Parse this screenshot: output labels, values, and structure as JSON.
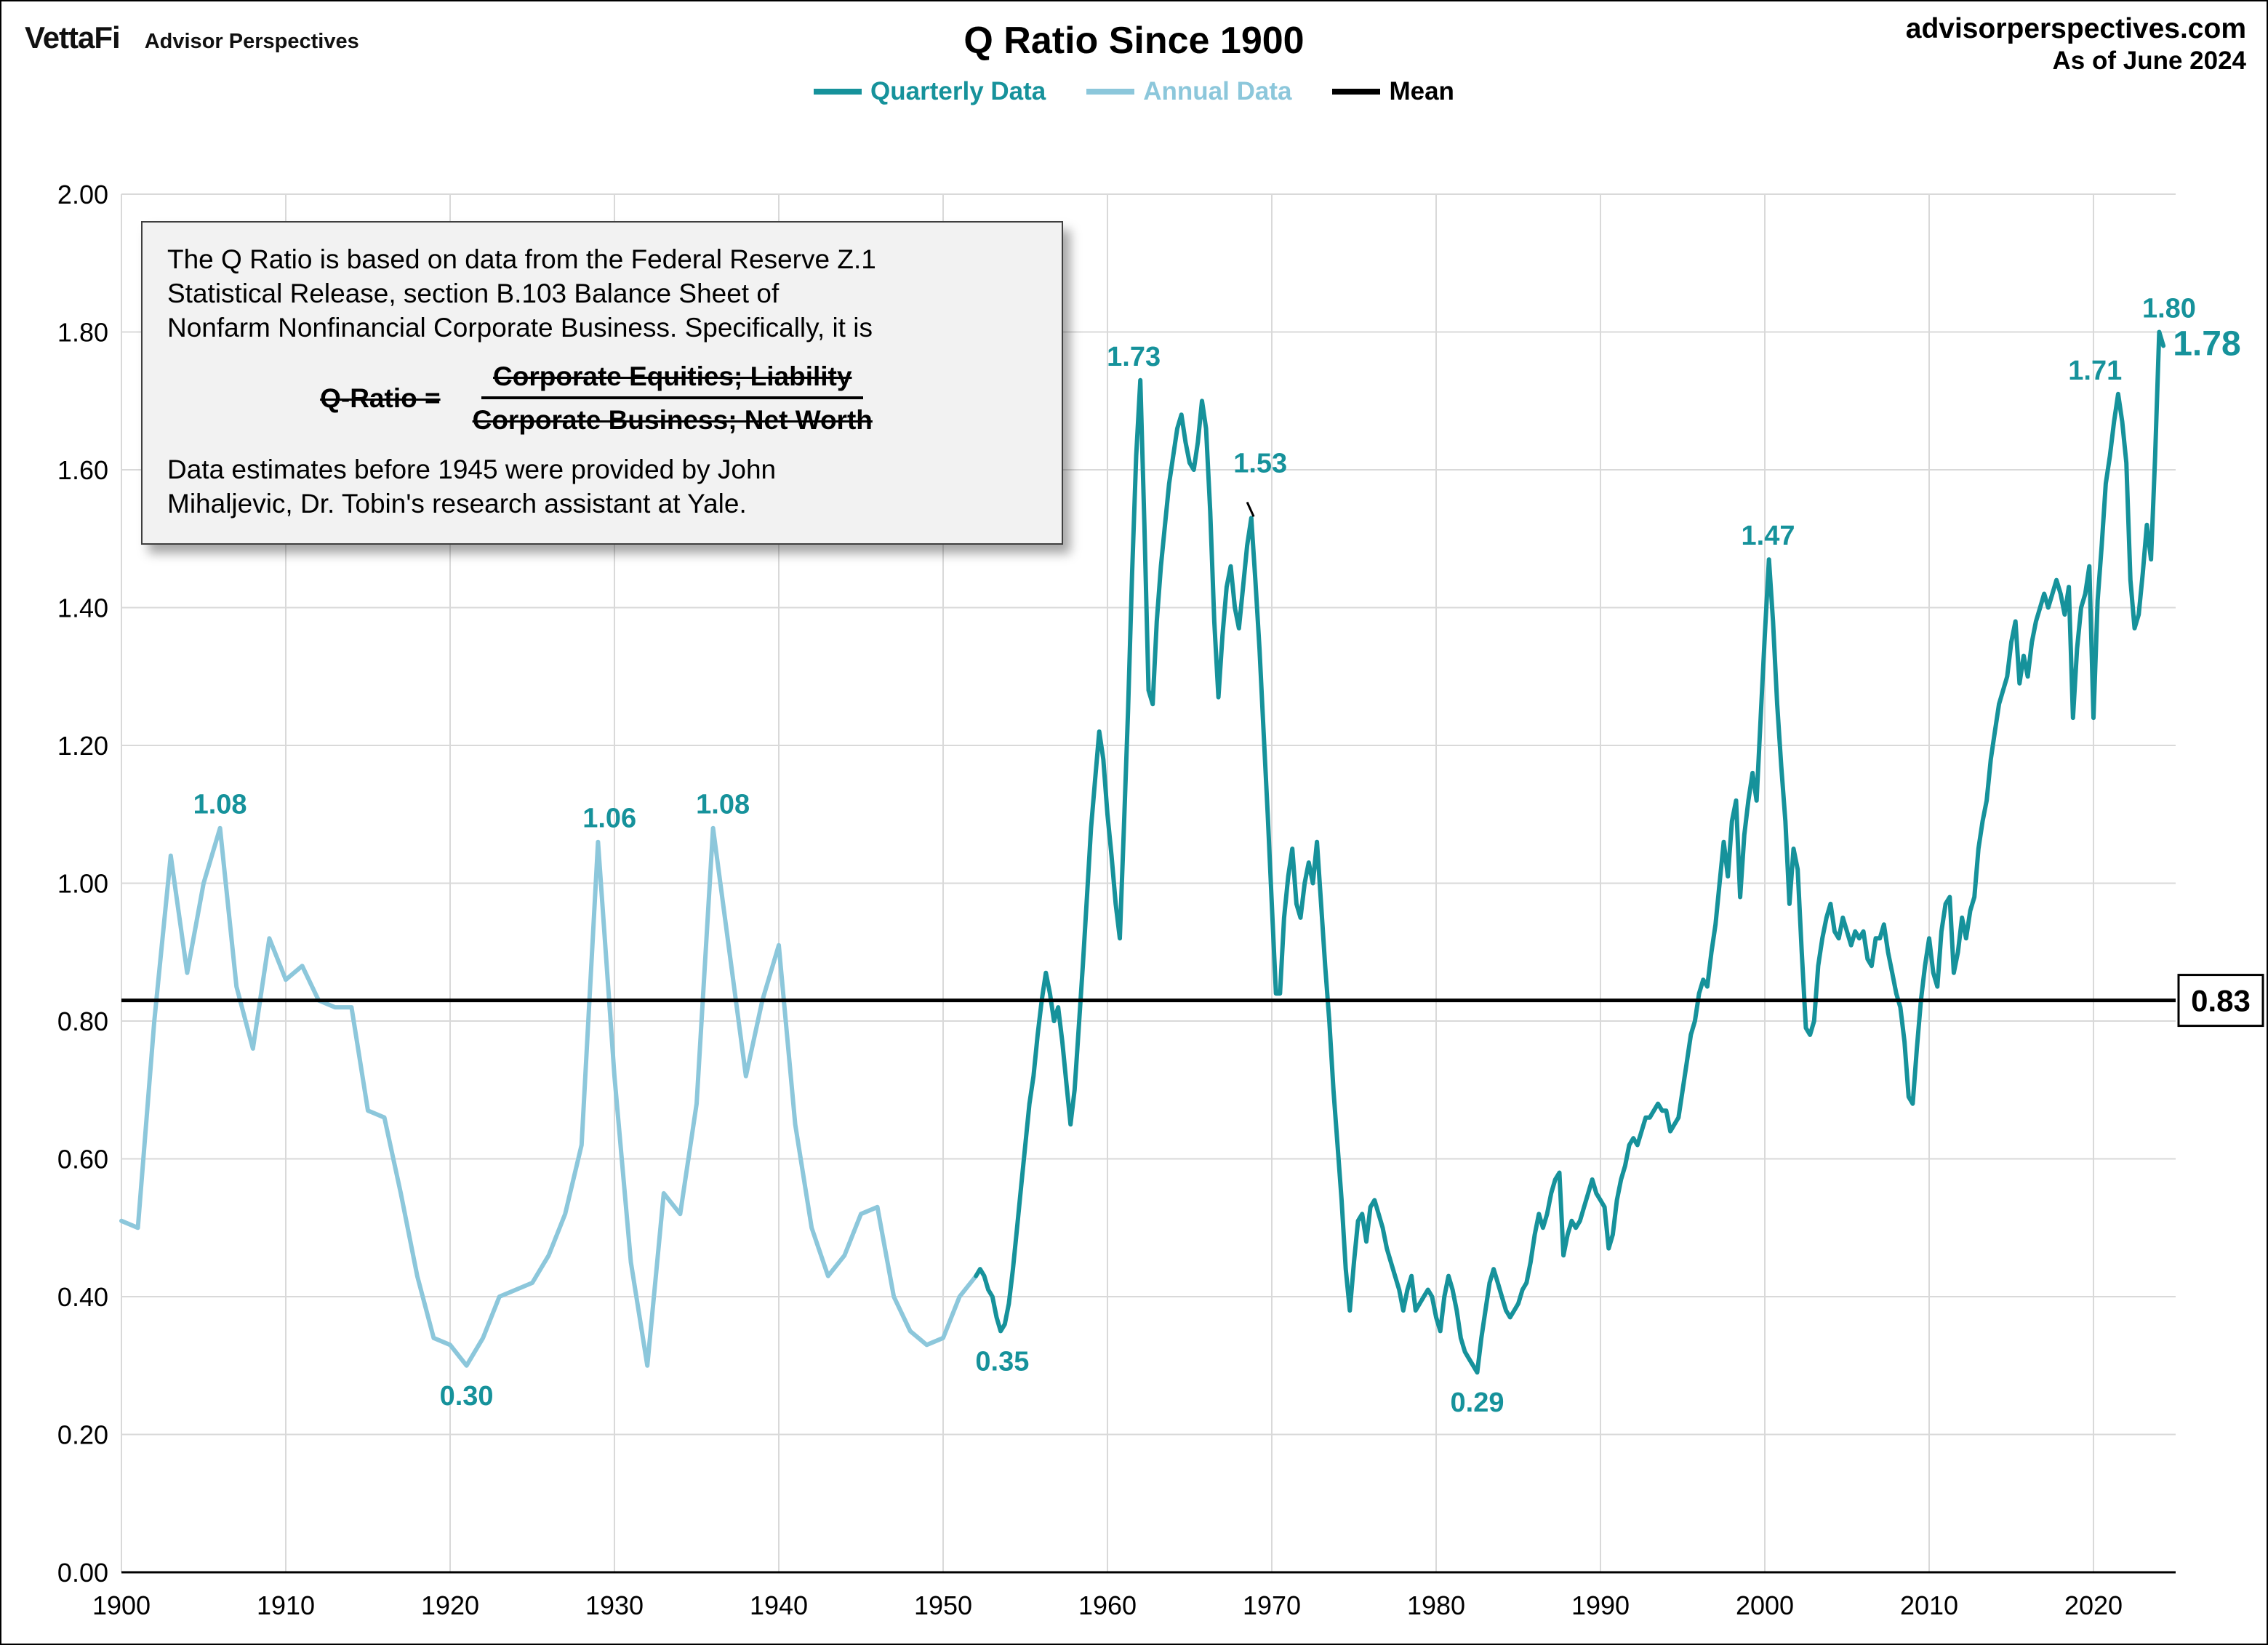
{
  "header": {
    "logo_text": "VettaFi",
    "logo_sub": "Advisor Perspectives",
    "title": "Q Ratio Since 1900",
    "site": "advisorperspectives.com",
    "as_of": "As of June 2024"
  },
  "legend": {
    "items": [
      {
        "label": "Quarterly Data",
        "color": "#16929B"
      },
      {
        "label": "Annual Data",
        "color": "#8CC7DB"
      },
      {
        "label": "Mean",
        "color": "#000000"
      }
    ]
  },
  "info_box": {
    "lines_1": [
      "The Q Ratio is based on data from the Federal Reserve Z.1",
      "Statistical Release, section B.103 Balance Sheet of",
      "Nonfarm Nonfinancial Corporate Business. Specifically, it is"
    ],
    "formula_lhs": "Q-Ratio =",
    "formula_numerator": "Corporate Equities; Liability",
    "formula_denominator": "Corporate Business; Net Worth",
    "lines_2": [
      "Data estimates before 1945 were provided by John",
      "Mihaljevic, Dr. Tobin's research assistant at Yale."
    ]
  },
  "chart_data": {
    "type": "line",
    "title": "Q Ratio Since 1900",
    "xlabel": "",
    "ylabel": "",
    "xlim": [
      1900,
      2025
    ],
    "ylim": [
      0,
      2
    ],
    "xticks": [
      1900,
      1910,
      1920,
      1930,
      1940,
      1950,
      1960,
      1970,
      1980,
      1990,
      2000,
      2010,
      2020
    ],
    "yticks": [
      0,
      0.2,
      0.4,
      0.6,
      0.8,
      1.0,
      1.2,
      1.4,
      1.6,
      1.8,
      2.0
    ],
    "grid": true,
    "legend_position": "top",
    "mean": 0.83,
    "mean_label": "0.83",
    "annotation_color": "#16929B",
    "series": [
      {
        "name": "Annual Data",
        "color": "#8CC7DB",
        "width": 6,
        "start": 1900,
        "step": 1,
        "values": [
          0.51,
          0.5,
          0.8,
          1.04,
          0.87,
          1.0,
          1.08,
          0.85,
          0.76,
          0.92,
          0.86,
          0.88,
          0.83,
          0.82,
          0.82,
          0.67,
          0.66,
          0.55,
          0.43,
          0.34,
          0.33,
          0.3,
          0.34,
          0.4,
          0.41,
          0.42,
          0.46,
          0.52,
          0.62,
          1.06,
          0.72,
          0.45,
          0.3,
          0.55,
          0.52,
          0.68,
          1.08,
          0.9,
          0.72,
          0.83,
          0.91,
          0.65,
          0.5,
          0.43,
          0.46,
          0.52,
          0.53,
          0.4,
          0.35,
          0.33,
          0.34,
          0.4,
          0.43
        ]
      },
      {
        "name": "Quarterly Data",
        "color": "#16929B",
        "width": 6,
        "start": 1952,
        "step": 0.25,
        "values": [
          0.43,
          0.44,
          0.43,
          0.41,
          0.4,
          0.37,
          0.35,
          0.36,
          0.39,
          0.44,
          0.5,
          0.56,
          0.62,
          0.68,
          0.72,
          0.78,
          0.83,
          0.87,
          0.84,
          0.8,
          0.82,
          0.77,
          0.71,
          0.65,
          0.7,
          0.79,
          0.88,
          0.98,
          1.08,
          1.15,
          1.22,
          1.18,
          1.1,
          1.04,
          0.97,
          0.92,
          1.08,
          1.25,
          1.45,
          1.62,
          1.73,
          1.52,
          1.28,
          1.26,
          1.38,
          1.46,
          1.52,
          1.58,
          1.62,
          1.66,
          1.68,
          1.64,
          1.61,
          1.6,
          1.64,
          1.7,
          1.66,
          1.54,
          1.38,
          1.27,
          1.36,
          1.43,
          1.46,
          1.4,
          1.37,
          1.43,
          1.49,
          1.53,
          1.44,
          1.34,
          1.22,
          1.1,
          0.97,
          0.84,
          0.84,
          0.95,
          1.01,
          1.05,
          0.97,
          0.95,
          1.0,
          1.03,
          1.0,
          1.06,
          0.97,
          0.88,
          0.8,
          0.7,
          0.62,
          0.54,
          0.44,
          0.38,
          0.45,
          0.51,
          0.52,
          0.48,
          0.53,
          0.54,
          0.52,
          0.5,
          0.47,
          0.45,
          0.43,
          0.41,
          0.38,
          0.41,
          0.43,
          0.38,
          0.39,
          0.4,
          0.41,
          0.4,
          0.37,
          0.35,
          0.4,
          0.43,
          0.41,
          0.38,
          0.34,
          0.32,
          0.31,
          0.3,
          0.29,
          0.34,
          0.38,
          0.42,
          0.44,
          0.42,
          0.4,
          0.38,
          0.37,
          0.38,
          0.39,
          0.41,
          0.42,
          0.45,
          0.49,
          0.52,
          0.5,
          0.52,
          0.55,
          0.57,
          0.58,
          0.46,
          0.49,
          0.51,
          0.5,
          0.51,
          0.53,
          0.55,
          0.57,
          0.55,
          0.54,
          0.53,
          0.47,
          0.49,
          0.54,
          0.57,
          0.59,
          0.62,
          0.63,
          0.62,
          0.64,
          0.66,
          0.66,
          0.67,
          0.68,
          0.67,
          0.67,
          0.64,
          0.65,
          0.66,
          0.7,
          0.74,
          0.78,
          0.8,
          0.84,
          0.86,
          0.85,
          0.9,
          0.94,
          1.0,
          1.06,
          1.01,
          1.09,
          1.12,
          0.98,
          1.07,
          1.12,
          1.16,
          1.12,
          1.24,
          1.36,
          1.47,
          1.38,
          1.26,
          1.17,
          1.09,
          0.97,
          1.05,
          1.02,
          0.9,
          0.79,
          0.78,
          0.8,
          0.88,
          0.92,
          0.95,
          0.97,
          0.93,
          0.92,
          0.95,
          0.93,
          0.91,
          0.93,
          0.92,
          0.93,
          0.89,
          0.88,
          0.92,
          0.92,
          0.94,
          0.9,
          0.87,
          0.84,
          0.82,
          0.77,
          0.69,
          0.68,
          0.76,
          0.83,
          0.88,
          0.92,
          0.87,
          0.85,
          0.93,
          0.97,
          0.98,
          0.87,
          0.9,
          0.95,
          0.92,
          0.96,
          0.98,
          1.05,
          1.09,
          1.12,
          1.18,
          1.22,
          1.26,
          1.28,
          1.3,
          1.35,
          1.38,
          1.29,
          1.33,
          1.3,
          1.35,
          1.38,
          1.4,
          1.42,
          1.4,
          1.42,
          1.44,
          1.42,
          1.39,
          1.43,
          1.24,
          1.34,
          1.4,
          1.42,
          1.46,
          1.24,
          1.41,
          1.49,
          1.58,
          1.62,
          1.67,
          1.71,
          1.67,
          1.61,
          1.44,
          1.37,
          1.39,
          1.45,
          1.52,
          1.47,
          1.62,
          1.8,
          1.78
        ]
      }
    ],
    "annotations": [
      {
        "label": "1.08",
        "x": 1906.0,
        "v": 1.08,
        "pos": "above"
      },
      {
        "label": "0.30",
        "x": 1921.0,
        "v": 0.3,
        "pos": "below"
      },
      {
        "label": "1.06",
        "x": 1929.7,
        "v": 1.06,
        "pos": "above"
      },
      {
        "label": "1.08",
        "x": 1936.6,
        "v": 1.08,
        "pos": "above"
      },
      {
        "label": "0.35",
        "x": 1953.6,
        "v": 0.35,
        "pos": "below"
      },
      {
        "label": "1.73",
        "x": 1961.6,
        "v": 1.73,
        "pos": "above"
      },
      {
        "label": "1.53",
        "x": 1969.3,
        "v": 1.575,
        "pos": "above",
        "leader": {
          "x1": 1968.5,
          "v1": 1.553,
          "x2": 1968.9,
          "v2": 1.532
        }
      },
      {
        "label": "0.29",
        "x": 1982.5,
        "v": 0.29,
        "pos": "below"
      },
      {
        "label": "1.47",
        "x": 2000.2,
        "v": 1.47,
        "pos": "above"
      },
      {
        "label": "1.71",
        "x": 2020.1,
        "v": 1.71,
        "pos": "above"
      },
      {
        "label": "1.80",
        "x": 2024.6,
        "v": 1.8,
        "pos": "above"
      },
      {
        "label": "1.78",
        "x": 2026.9,
        "v": 1.745,
        "pos": "above",
        "size": "large"
      }
    ]
  }
}
